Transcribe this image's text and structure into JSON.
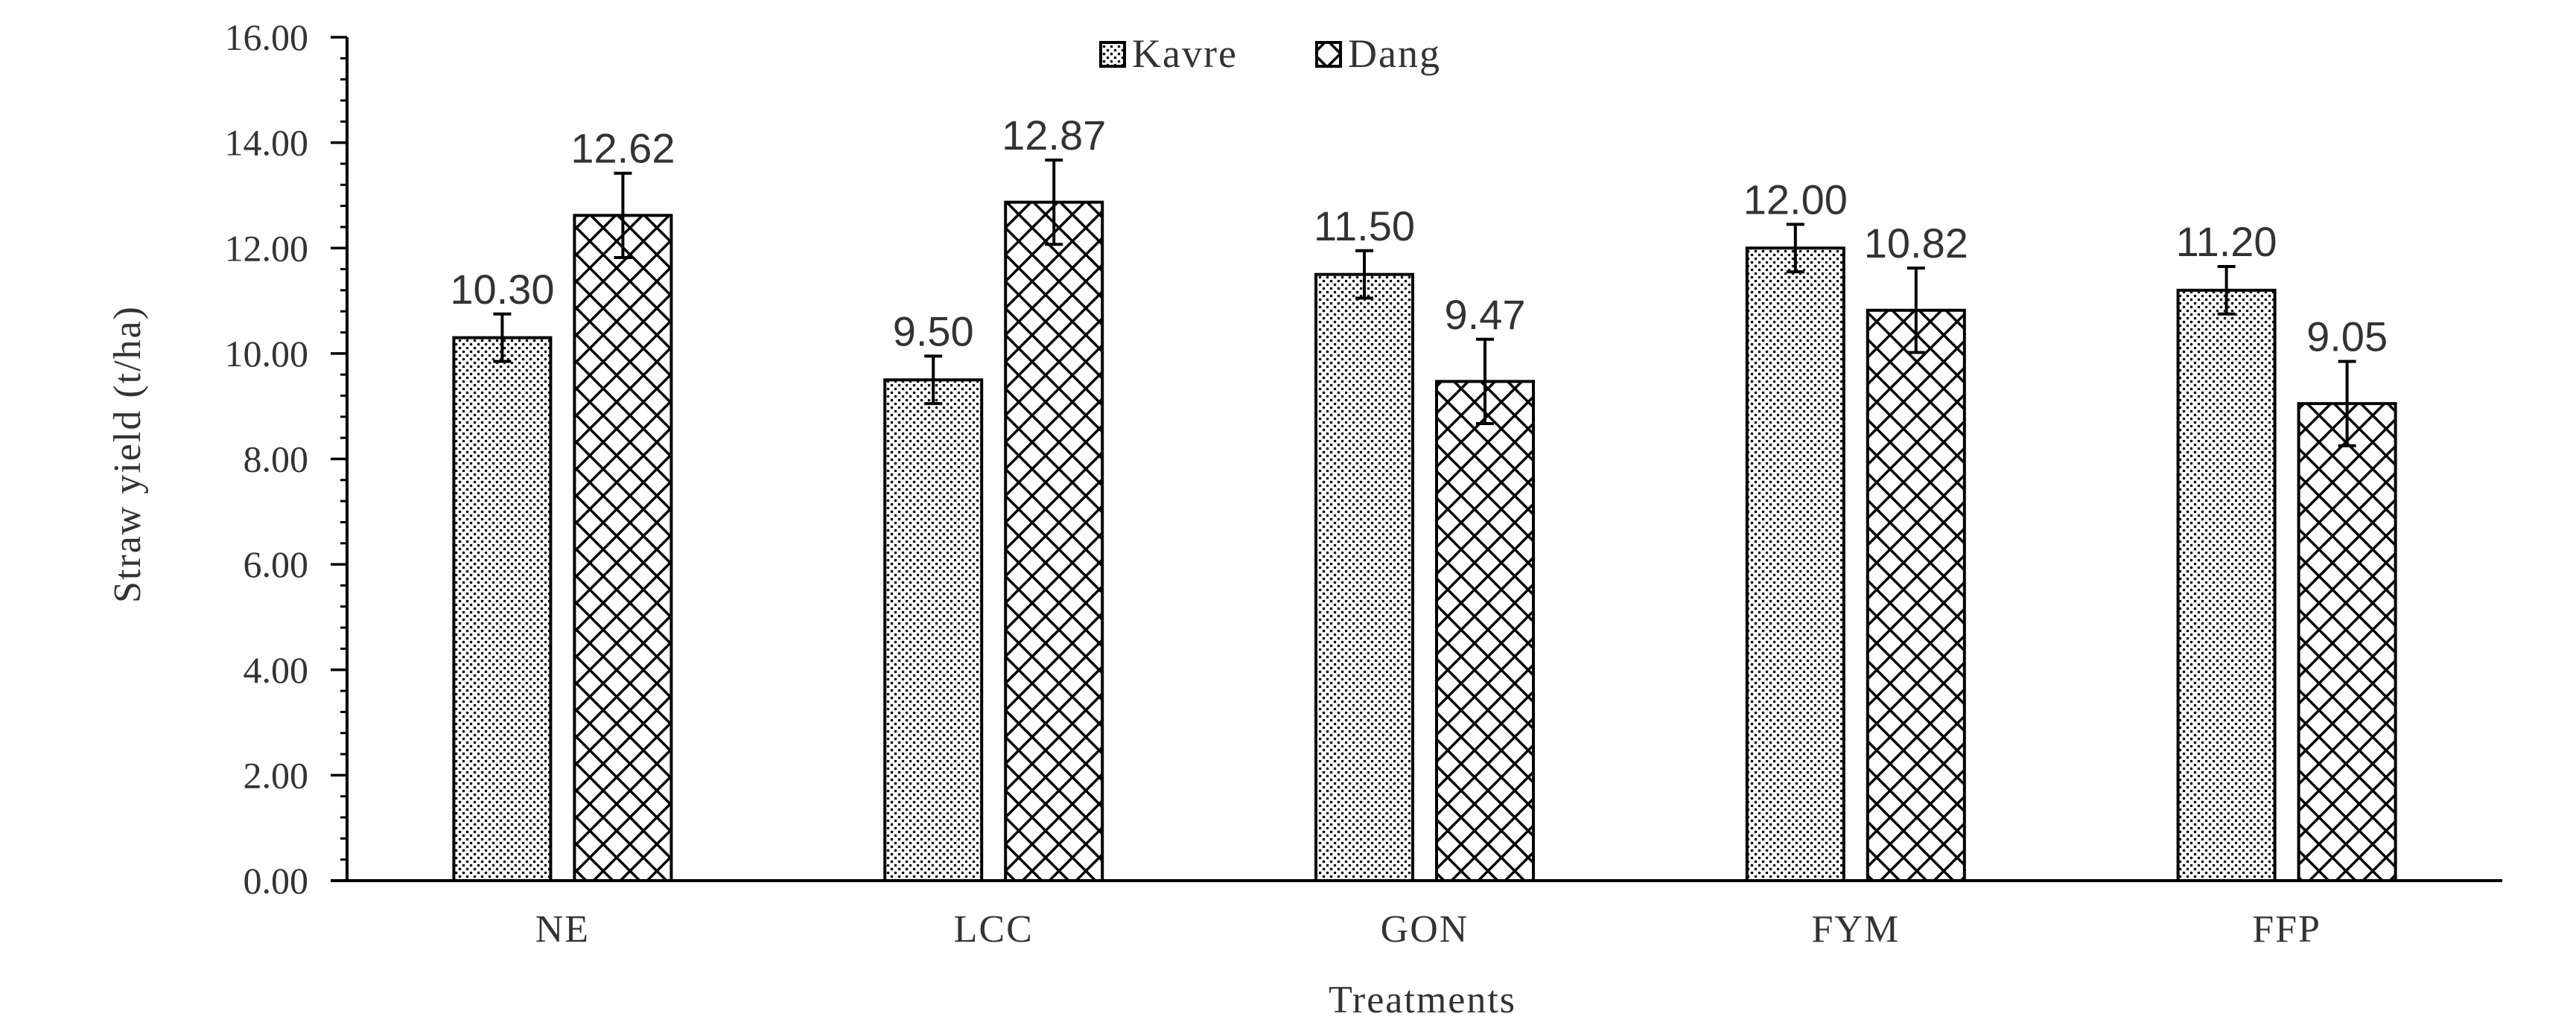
{
  "chart_data": {
    "type": "bar",
    "title": "",
    "xlabel": "Treatments",
    "ylabel": "Straw yield (t/ha)",
    "ylim": [
      0,
      16
    ],
    "y_ticks": [
      "0.00",
      "2.00",
      "4.00",
      "6.00",
      "8.00",
      "10.00",
      "12.00",
      "14.00",
      "16.00"
    ],
    "categories": [
      "NE",
      "LCC",
      "GON",
      "FYM",
      "FFP"
    ],
    "series": [
      {
        "name": "Kavre",
        "values": [
          10.3,
          9.5,
          11.5,
          12.0,
          11.2
        ],
        "labels": [
          "10.30",
          "9.50",
          "11.50",
          "12.00",
          "11.20"
        ],
        "errors": [
          0.45,
          0.45,
          0.45,
          0.45,
          0.45
        ],
        "pattern": "dots"
      },
      {
        "name": "Dang",
        "values": [
          12.62,
          12.87,
          9.47,
          10.82,
          9.05
        ],
        "labels": [
          "12.62",
          "12.87",
          "9.47",
          "10.82",
          "9.05"
        ],
        "errors": [
          0.8,
          0.8,
          0.8,
          0.8,
          0.8
        ],
        "pattern": "crosshatch"
      }
    ],
    "legend_position": "top-center",
    "grid": false,
    "colors": {
      "axis": "#000000",
      "bar_border": "#000000",
      "pattern": "#000000",
      "background": "#ffffff"
    }
  }
}
